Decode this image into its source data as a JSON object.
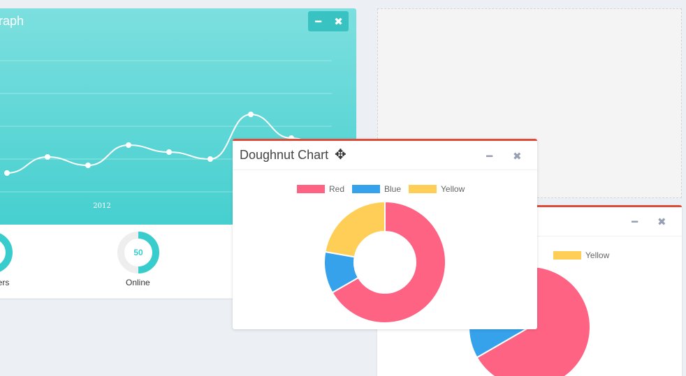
{
  "sales_box": {
    "title": "Sales Graph",
    "title_visible": "y Graph",
    "minimize_icon": "minus-icon",
    "close_icon": "times-icon",
    "colors": {
      "header_top": "#7ddfdf",
      "header_bottom": "#46cfcf",
      "line": "#ffffff"
    }
  },
  "chart_data": [
    {
      "type": "line",
      "x_tick_labels": [
        "2012"
      ],
      "y": [
        234,
        257,
        245,
        274,
        264,
        254,
        318,
        284,
        265
      ],
      "ylim": [
        190,
        400
      ],
      "grid": true
    },
    {
      "type": "pie",
      "title": "Doughnut Chart",
      "categories": [
        "Red",
        "Blue",
        "Yellow"
      ],
      "values": [
        300,
        50,
        100
      ],
      "colors": [
        "#ff6384",
        "#36a2eb",
        "#ffce56"
      ],
      "legend": "top"
    }
  ],
  "knobs": [
    {
      "value": "",
      "label": "ders",
      "fraction": 0.5
    },
    {
      "value": "50",
      "label": "Online",
      "fraction": 0.5
    }
  ],
  "doughnut_box": {
    "title": "Doughnut Chart",
    "minimize_icon": "minus-icon",
    "close_icon": "times-icon",
    "move_icon": "move-cursor-icon",
    "accent": "#dd4b39"
  },
  "back_box": {
    "legend": [
      {
        "label": "ue",
        "color": "#36a2eb"
      },
      {
        "label": "Yellow",
        "color": "#ffce56"
      }
    ]
  }
}
